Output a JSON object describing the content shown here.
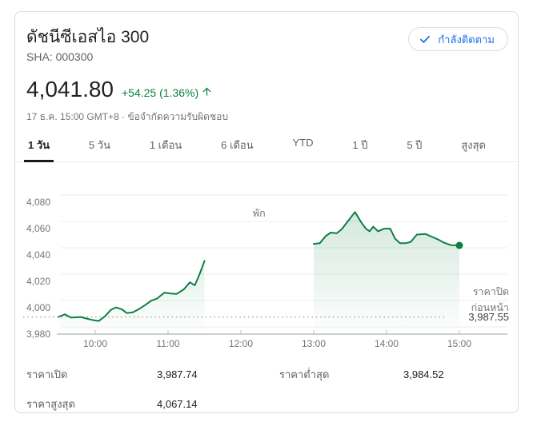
{
  "card": {
    "title": "ดัชนีซีเอสไอ 300",
    "subtitle": "SHA: 000300",
    "follow_button": {
      "label": "กำลังติดตาม",
      "icon": "check",
      "accent_color": "#1a73e8"
    },
    "price": "4,041.80",
    "change": "+54.25 (1.36%)",
    "change_color": "#0b8043",
    "timestamp": "17 ธ.ค. 15:00 GMT+8",
    "separator": "·",
    "disclaimer": "ข้อจำกัดความรับผิดชอบ",
    "tabs": [
      {
        "label": "1 วัน",
        "active": true
      },
      {
        "label": "5 วัน",
        "active": false
      },
      {
        "label": "1 เดือน",
        "active": false
      },
      {
        "label": "6 เดือน",
        "active": false
      },
      {
        "label": "YTD",
        "active": false
      },
      {
        "label": "1 ปี",
        "active": false
      },
      {
        "label": "5 ปี",
        "active": false
      },
      {
        "label": "สูงสุด",
        "active": false
      }
    ],
    "stats": [
      {
        "label": "ราคาเปิด",
        "value": "3,987.74"
      },
      {
        "label": "ราคาต่ำสุด",
        "value": "3,984.52"
      },
      {
        "label": "ราคาสูงสุด",
        "value": "4,067.14"
      }
    ]
  },
  "chart_data": {
    "type": "line",
    "line_color": "#0b8043",
    "grid": true,
    "ylim": [
      3980,
      4080
    ],
    "y_axis": {
      "ticks": [
        4080,
        4060,
        4040,
        4020,
        4000,
        3980
      ],
      "labels": [
        "4,080",
        "4,060",
        "4,040",
        "4,020",
        "4,000",
        "3,980"
      ]
    },
    "x_axis": {
      "ticks_minutes": [
        30,
        90,
        150,
        210,
        270,
        330
      ],
      "labels": [
        "10:00",
        "11:00",
        "12:00",
        "13:00",
        "14:00",
        "15:00"
      ],
      "session_break": {
        "label": "พัก",
        "gap_minutes": [
          120,
          210
        ]
      }
    },
    "previous_close": {
      "value": 3987.55,
      "label_line1": "ราคาปิด",
      "label_line2": "ก่อนหน้า",
      "value_label": "3,987.55"
    },
    "series": [
      {
        "name": "morning-session",
        "points": [
          [
            0,
            3987.7
          ],
          [
            5,
            3989.5
          ],
          [
            10,
            3987.0
          ],
          [
            18,
            3987.5
          ],
          [
            23,
            3986.3
          ],
          [
            29,
            3985.0
          ],
          [
            33,
            3984.5
          ],
          [
            38,
            3988.0
          ],
          [
            43,
            3993.0
          ],
          [
            47,
            3994.8
          ],
          [
            52,
            3993.3
          ],
          [
            56,
            3990.5
          ],
          [
            61,
            3991.0
          ],
          [
            66,
            3993.5
          ],
          [
            71,
            3996.5
          ],
          [
            76,
            3999.8
          ],
          [
            81,
            4001.5
          ],
          [
            87,
            4006.0
          ],
          [
            92,
            4005.3
          ],
          [
            97,
            4005.0
          ],
          [
            103,
            4008.5
          ],
          [
            108,
            4013.8
          ],
          [
            112,
            4011.5
          ],
          [
            116,
            4020.0
          ],
          [
            120,
            4030.0
          ]
        ]
      },
      {
        "name": "afternoon-session",
        "end_marker": true,
        "points": [
          [
            210,
            4043.0
          ],
          [
            215,
            4043.5
          ],
          [
            220,
            4049.0
          ],
          [
            224,
            4051.5
          ],
          [
            229,
            4051.0
          ],
          [
            233,
            4054.0
          ],
          [
            238,
            4060.0
          ],
          [
            244,
            4067.1
          ],
          [
            249,
            4059.5
          ],
          [
            253,
            4054.5
          ],
          [
            256,
            4052.5
          ],
          [
            259,
            4056.0
          ],
          [
            263,
            4052.5
          ],
          [
            268,
            4054.5
          ],
          [
            273,
            4054.5
          ],
          [
            277,
            4047.0
          ],
          [
            281,
            4043.5
          ],
          [
            286,
            4043.5
          ],
          [
            290,
            4044.5
          ],
          [
            295,
            4050.0
          ],
          [
            302,
            4050.5
          ],
          [
            307,
            4048.5
          ],
          [
            312,
            4046.5
          ],
          [
            317,
            4044.0
          ],
          [
            323,
            4042.0
          ],
          [
            330,
            4041.8
          ]
        ]
      }
    ]
  }
}
